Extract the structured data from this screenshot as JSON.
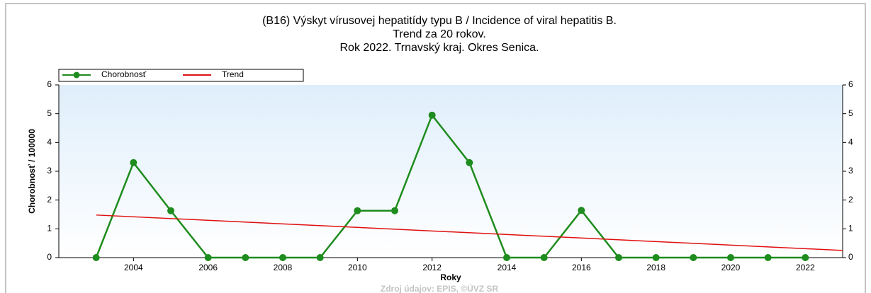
{
  "chart_data": {
    "type": "line",
    "title": [
      "(B16) Výskyt vírusovej hepatitídy typu B / Incidence of viral hepatitis B.",
      "Trend za 20 rokov.",
      "Rok 2022. Trnavský kraj. Okres Senica."
    ],
    "x": [
      2003,
      2004,
      2005,
      2006,
      2007,
      2008,
      2009,
      2010,
      2011,
      2012,
      2013,
      2014,
      2015,
      2016,
      2017,
      2018,
      2019,
      2020,
      2021,
      2022
    ],
    "series": [
      {
        "name": "Chorobnosť",
        "color": "#1e8c1e",
        "marker": true,
        "values": [
          0,
          3.3,
          1.63,
          0,
          0,
          0,
          0,
          1.63,
          1.63,
          4.95,
          3.3,
          0,
          0,
          1.64,
          0,
          0,
          0,
          0,
          0,
          0
        ]
      },
      {
        "name": "Trend",
        "color": "#e01010",
        "marker": false,
        "x": [
          2003,
          2023
        ],
        "values": [
          1.48,
          0.25
        ]
      }
    ],
    "xlabel": "Roky",
    "ylabel": "Chorobnosť / 100000",
    "xlim": [
      2002,
      2023
    ],
    "xticks": [
      2004,
      2006,
      2008,
      2010,
      2012,
      2014,
      2016,
      2018,
      2020,
      2022
    ],
    "ylim": [
      0,
      6
    ],
    "yticks": [
      0,
      1,
      2,
      3,
      4,
      5,
      6
    ],
    "y2lim": [
      0,
      6
    ],
    "y2ticks": [
      0,
      1,
      2,
      3,
      4,
      5,
      6
    ],
    "legend": "top-left",
    "source": "Zdroj údajov: EPIS, ©ÚVZ SR"
  }
}
